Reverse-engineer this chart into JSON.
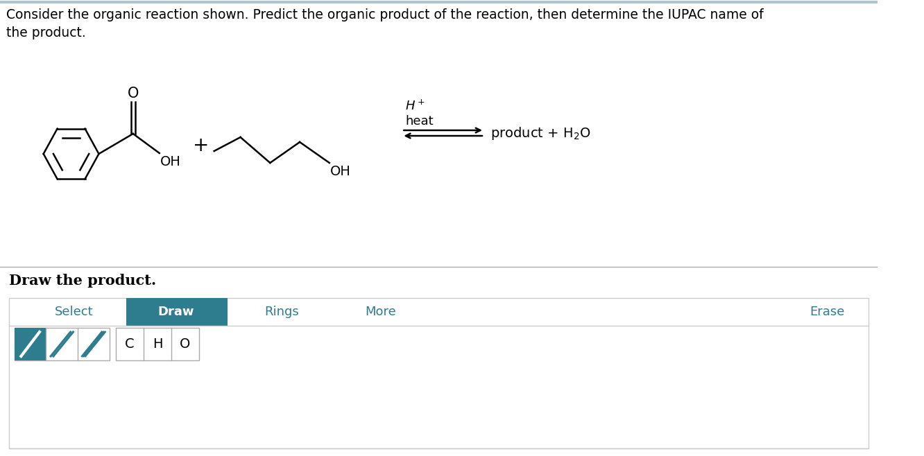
{
  "title_line1": "Consider the organic reaction shown. Predict the organic product of the reaction, then determine the IUPAC name of",
  "title_line2": "the product.",
  "bg_color": "#ffffff",
  "text_color": "#000000",
  "teal_color": "#2e7d8e",
  "draw_the_product": "Draw the product.",
  "toolbar_items": [
    "Select",
    "Draw",
    "Rings",
    "More",
    "Erase"
  ],
  "atom_buttons": [
    "C",
    "H",
    "O"
  ],
  "h_plus_label": "H$^+$",
  "heat_label": "heat",
  "product_label": "product + H$_2$O",
  "plus_sign": "+",
  "divider_color": "#bbbbbb",
  "teal_text_color": "#2e7d8e"
}
